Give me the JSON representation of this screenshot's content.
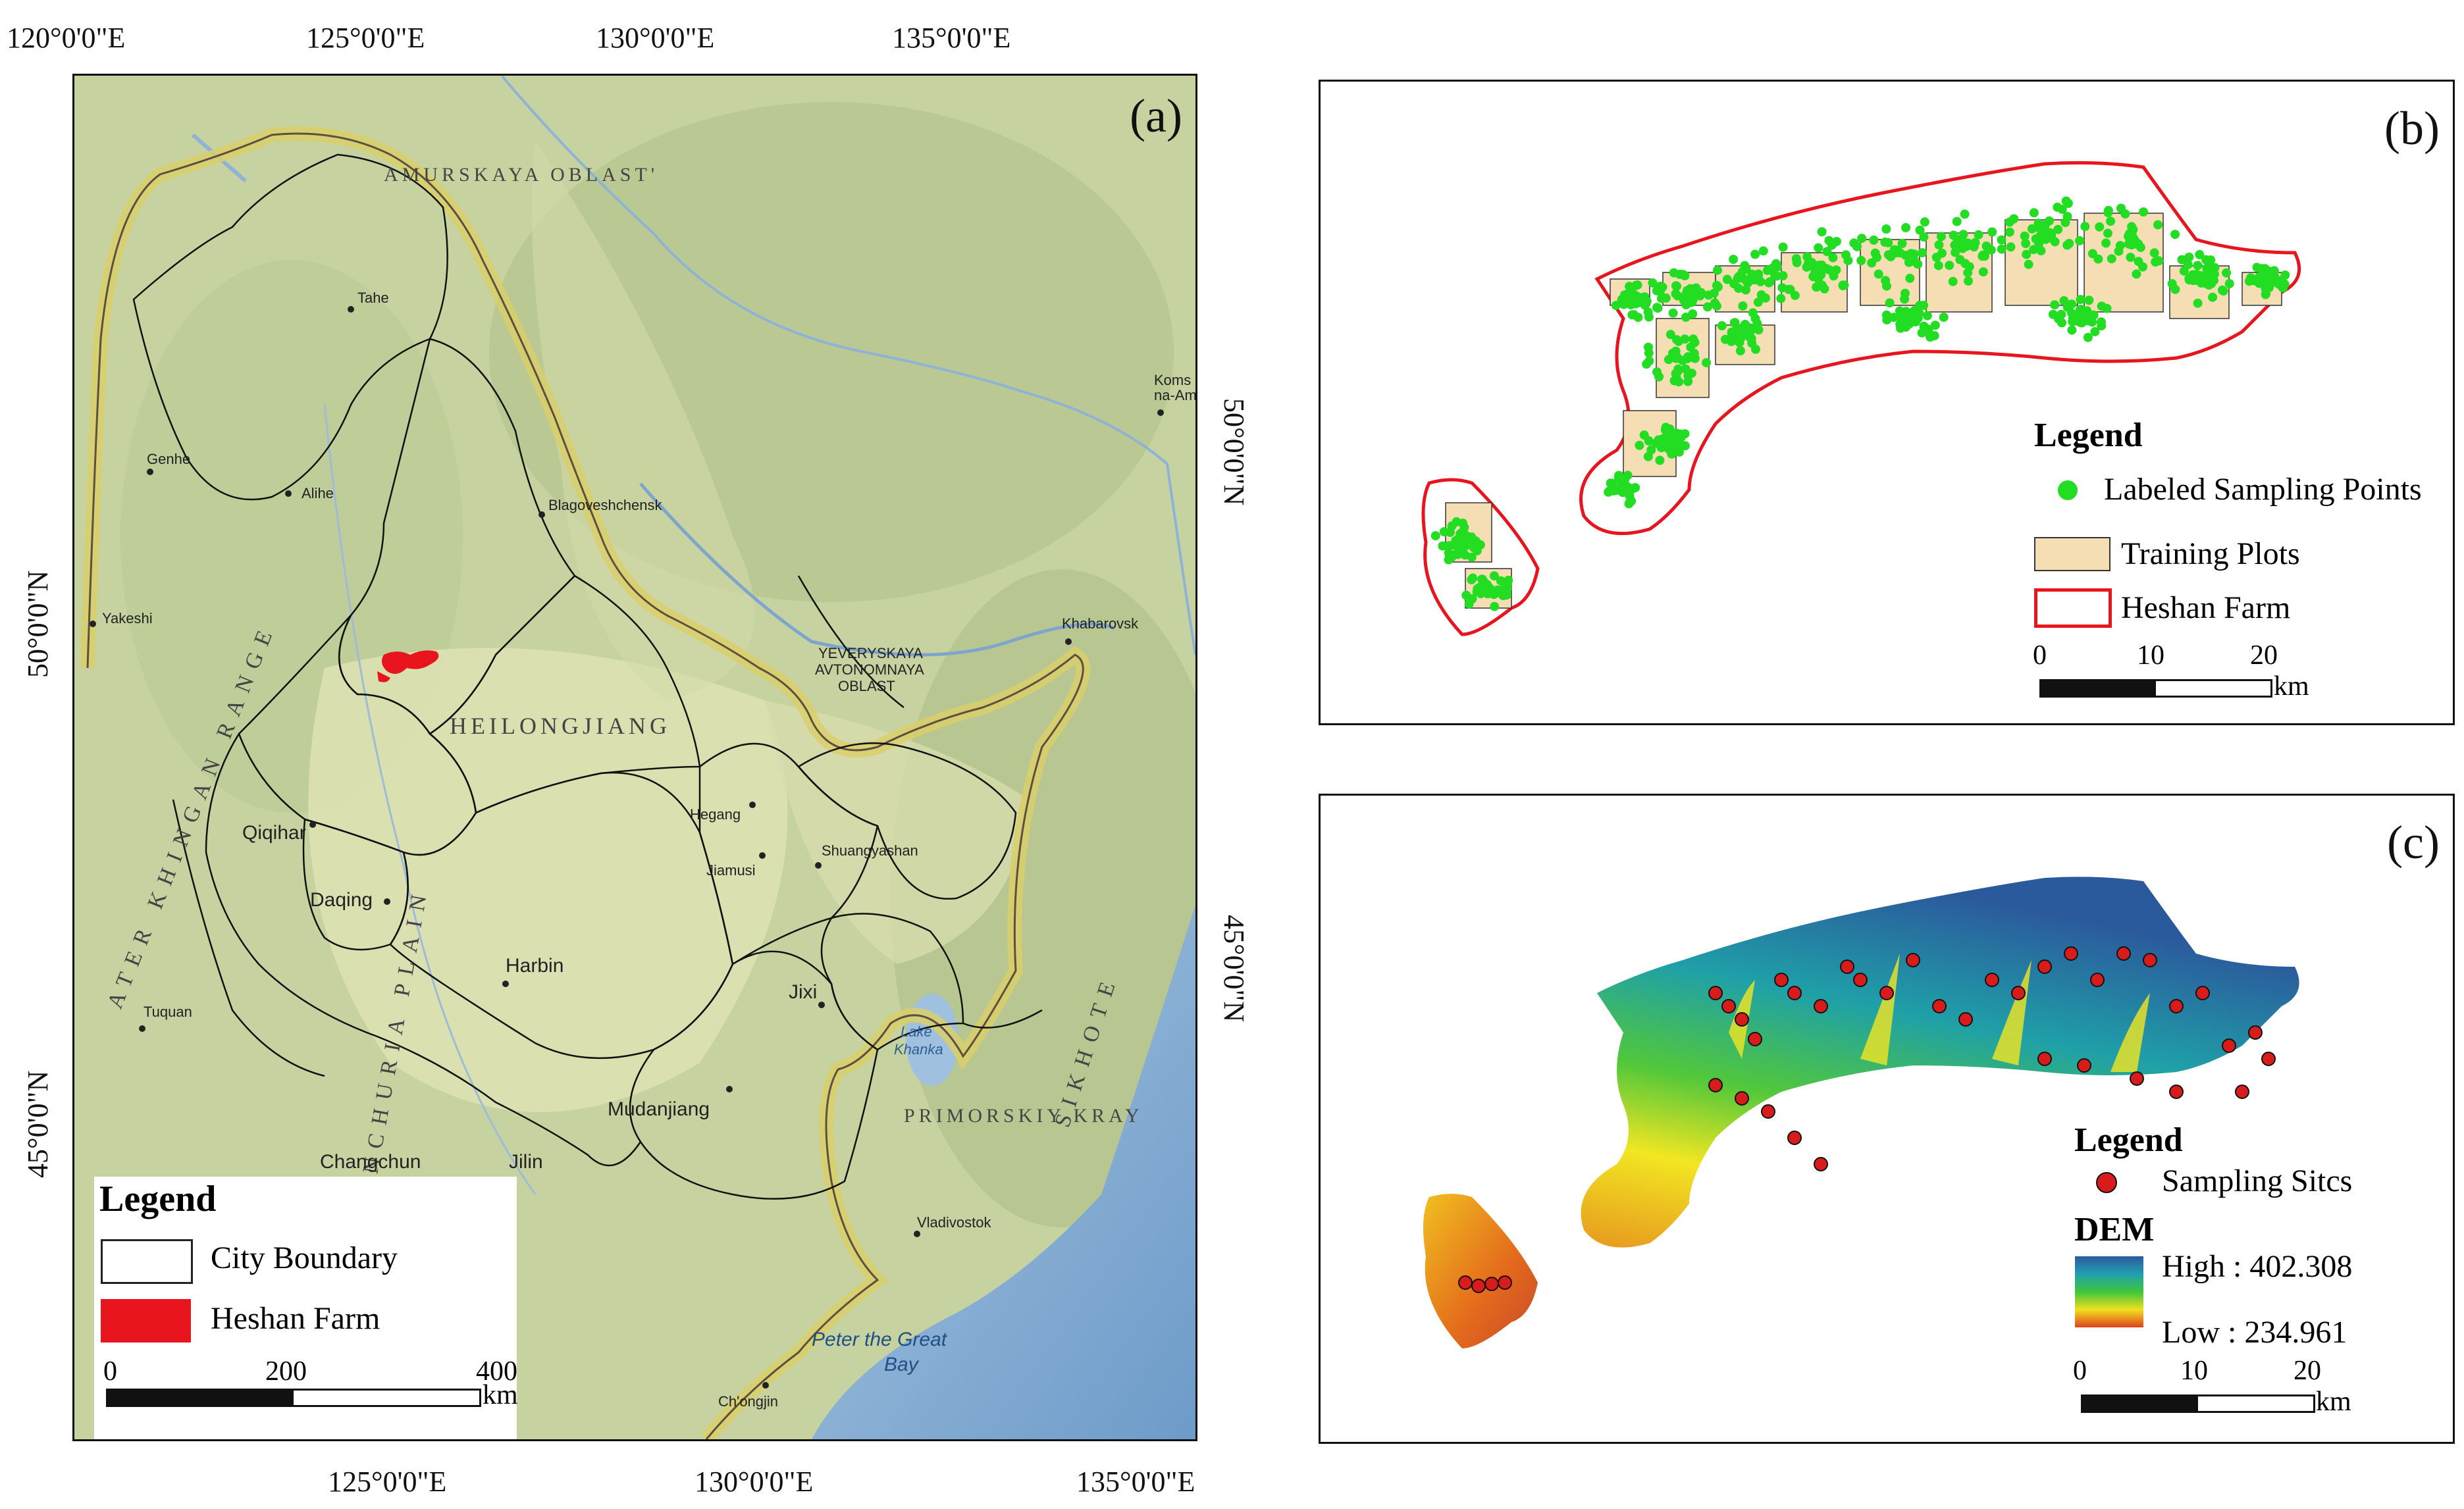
{
  "panel_a": {
    "label": "(a)",
    "top_ticks": [
      "120°0'0\"E",
      "125°0'0\"E",
      "130°0'0\"E",
      "135°0'0\"E"
    ],
    "bottom_ticks": [
      "125°0'0\"E",
      "130°0'0\"E",
      "135°0'0\"E"
    ],
    "left_ticks": [
      "50°0'0\"N",
      "45°0'0\"N"
    ],
    "right_ticks": [
      "50°0'0\"N",
      "45°0'0\"N"
    ],
    "regions": {
      "amur": "AMURSKAYA OBLAST'",
      "heilongjiang": "HEILONGJIANG",
      "primorskiy": "PRIMORSKIY KRAY",
      "yevr1": "YEVERYSKAYA",
      "yevr2": "AVTONOMNAYA",
      "yevr3": "OBLAST",
      "khingan": "ATER KHINGAN RANGE",
      "sikhote": "SIKHOTE",
      "plain": "NCHURIA PLAIN"
    },
    "places": {
      "tahe": "Tahe",
      "genhe": "Genhe",
      "alihe": "Alihe",
      "yakeshi": "Yakeshi",
      "blagoveshchensk": "Blagoveshchensk",
      "khabarovsk": "Khabarovsk",
      "komsomolsk1": "Koms",
      "komsomolsk2": "na-Am",
      "qiqihar": "Qiqihar",
      "daqing": "Daqing",
      "harbin": "Harbin",
      "hegang": "Hegang",
      "jiamusi": "Jiamusi",
      "shuangyashan": "Shuangyashan",
      "jixi": "Jixi",
      "lake1": "Lake",
      "lake2": "Khanka",
      "mudanjiang": "Mudanjiang",
      "tuquan": "Tuquan",
      "changchun": "Changchun",
      "jilin": "Jilin",
      "vladivostok": "Vladivostok",
      "chongjin": "Ch'ongjin",
      "bay1": "Peter the Great",
      "bay2": "Bay"
    },
    "legend": {
      "title": "Legend",
      "items": [
        "City Boundary",
        "Heshan Farm"
      ],
      "scale_labels": [
        "0",
        "200",
        "400"
      ],
      "unit": "km"
    }
  },
  "panel_b": {
    "label": "(b)",
    "legend": {
      "title": "Legend",
      "items": [
        "Labeled Sampling Points",
        "Training Plots",
        "Heshan Farm"
      ],
      "scale_labels": [
        "0",
        "10",
        "20"
      ],
      "unit": "km"
    }
  },
  "panel_c": {
    "label": "(c)",
    "legend": {
      "title": "Legend",
      "point_item": "Sampling Sitcs",
      "dem_title": "DEM",
      "high": "High : 402.308",
      "low": "Low : 234.961",
      "scale_labels": [
        "0",
        "10",
        "20"
      ],
      "unit": "km"
    }
  },
  "colors": {
    "farm_red": "#e8141e",
    "sampling_green": "#22dd22",
    "training_plot": "#f5deb3",
    "site_red": "#d81c1c",
    "dem_high": "#2d5a9e",
    "dem_low": "#e0401c"
  }
}
